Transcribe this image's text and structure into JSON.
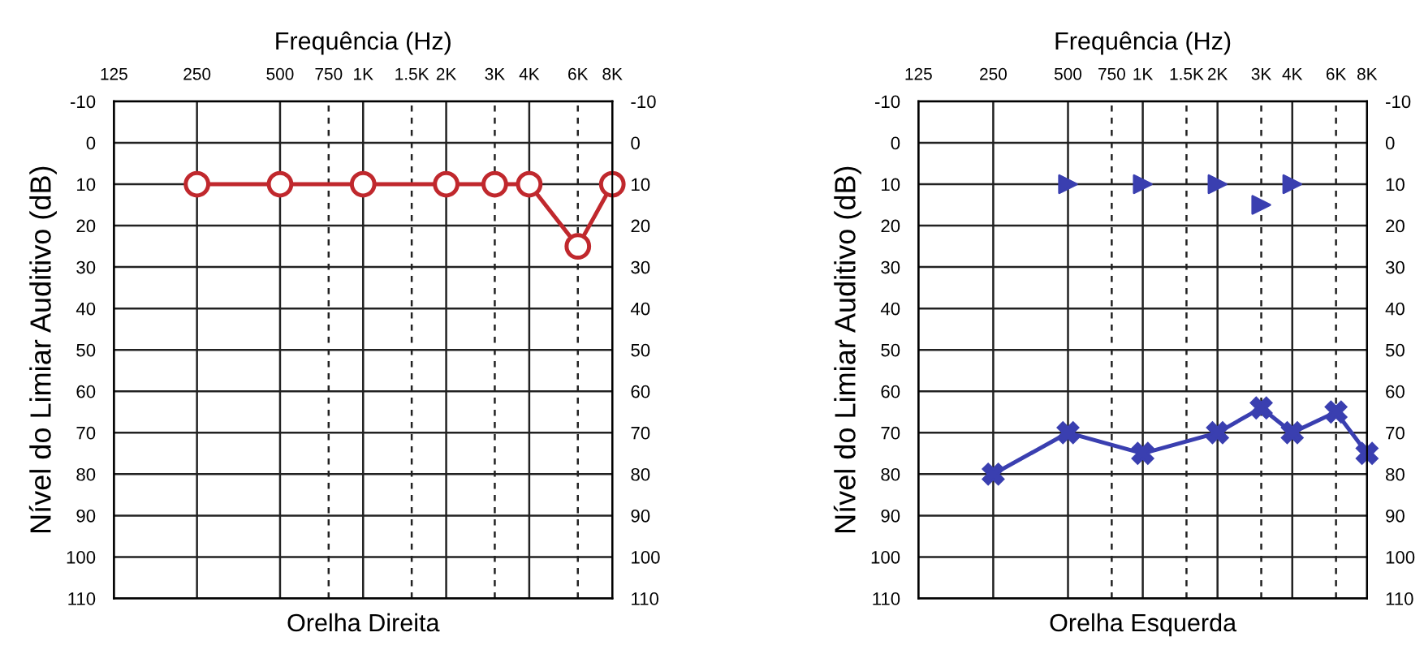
{
  "chart_data": [
    {
      "type": "line",
      "title": "Orelha Direita",
      "xlabel": "Frequência (Hz)",
      "ylabel": "Nível do Limiar Auditivo (dB)",
      "log": "x",
      "xlim": [
        125,
        8000
      ],
      "xticks": [
        125,
        250,
        500,
        750,
        {
          "value": 1000,
          "label": "1K"
        },
        {
          "value": 1500,
          "label": "1.5K"
        },
        {
          "value": 2000,
          "label": "2K"
        },
        {
          "value": 3000,
          "label": "3K"
        },
        {
          "value": 4000,
          "label": "4K"
        },
        {
          "value": 6000,
          "label": "6K"
        },
        {
          "value": 8000,
          "label": "8K"
        }
      ],
      "ylim": [
        110,
        -10
      ],
      "yticks": [
        -10,
        0,
        10,
        20,
        30,
        40,
        50,
        60,
        70,
        80,
        90,
        100,
        110
      ],
      "y2lim": [
        110,
        -10
      ],
      "y2ticks": [
        -10,
        0,
        10,
        20,
        30,
        40,
        50,
        60,
        70,
        80,
        90,
        100,
        110
      ],
      "grid": "y",
      "ref_lines": [
        {
          "axis": "x",
          "value": 250,
          "line_style": "solid"
        },
        {
          "axis": "x",
          "value": 500,
          "line_style": "solid"
        },
        {
          "axis": "x",
          "value": 750,
          "line_style": "dashed"
        },
        {
          "axis": "x",
          "value": 1000,
          "line_style": "solid"
        },
        {
          "axis": "x",
          "value": 1500,
          "line_style": "dashed"
        },
        {
          "axis": "x",
          "value": 2000,
          "line_style": "solid"
        },
        {
          "axis": "x",
          "value": 3000,
          "line_style": "dashed"
        },
        {
          "axis": "x",
          "value": 4000,
          "line_style": "solid"
        },
        {
          "axis": "x",
          "value": 6000,
          "line_style": "dashed"
        }
      ],
      "series": [
        {
          "marker": "circle",
          "color": "#c0282d",
          "x": [
            250,
            500,
            1000,
            2000,
            3000,
            4000,
            6000,
            8000
          ],
          "values": [
            10,
            10,
            10,
            10,
            10,
            10,
            25,
            10
          ]
        }
      ]
    },
    {
      "type": "line",
      "title": "Orelha Esquerda",
      "xlabel": "Frequência (Hz)",
      "ylabel": "Nível do Limiar Auditivo (dB)",
      "log": "x",
      "xlim": [
        125,
        8000
      ],
      "xticks": [
        125,
        250,
        500,
        750,
        {
          "value": 1000,
          "label": "1K"
        },
        {
          "value": 1500,
          "label": "1.5K"
        },
        {
          "value": 2000,
          "label": "2K"
        },
        {
          "value": 3000,
          "label": "3K"
        },
        {
          "value": 4000,
          "label": "4K"
        },
        {
          "value": 6000,
          "label": "6K"
        },
        {
          "value": 8000,
          "label": "8K"
        }
      ],
      "ylim": [
        110,
        -10
      ],
      "yticks": [
        -10,
        0,
        10,
        20,
        30,
        40,
        50,
        60,
        70,
        80,
        90,
        100,
        110
      ],
      "y2lim": [
        110,
        -10
      ],
      "y2ticks": [
        -10,
        0,
        10,
        20,
        30,
        40,
        50,
        60,
        70,
        80,
        90,
        100,
        110
      ],
      "grid": "y",
      "ref_lines": [
        {
          "axis": "x",
          "value": 250,
          "line_style": "solid"
        },
        {
          "axis": "x",
          "value": 500,
          "line_style": "solid"
        },
        {
          "axis": "x",
          "value": 750,
          "line_style": "dashed"
        },
        {
          "axis": "x",
          "value": 1000,
          "line_style": "solid"
        },
        {
          "axis": "x",
          "value": 1500,
          "line_style": "dashed"
        },
        {
          "axis": "x",
          "value": 2000,
          "line_style": "solid"
        },
        {
          "axis": "x",
          "value": 3000,
          "line_style": "dashed"
        },
        {
          "axis": "x",
          "value": 4000,
          "line_style": "solid"
        },
        {
          "axis": "x",
          "value": 6000,
          "line_style": "dashed"
        }
      ],
      "series": [
        {
          "marker": "cross",
          "color": "#3a3fb0",
          "x": [
            250,
            500,
            1000,
            2000,
            3000,
            4000,
            6000,
            8000
          ],
          "values": [
            80,
            70,
            75,
            70,
            64,
            70,
            65,
            75
          ]
        },
        {
          "type": "scatter",
          "marker": "triangle",
          "color": "#3a3fb0",
          "x": [
            500,
            1000,
            2000,
            3000,
            4000
          ],
          "values": [
            10,
            10,
            10,
            15,
            10
          ]
        }
      ]
    }
  ]
}
